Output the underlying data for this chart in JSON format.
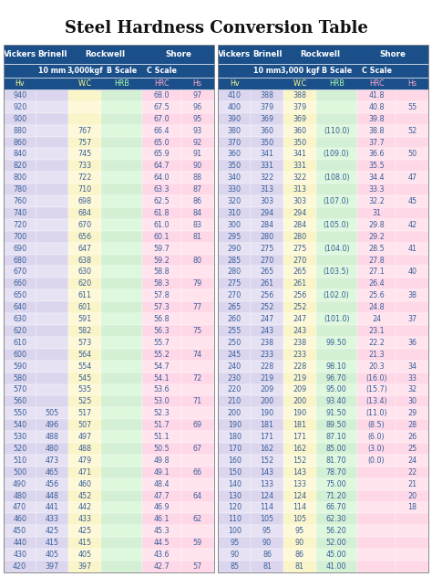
{
  "title": "Steel Hardness Conversion Table",
  "left_data": [
    [
      "940",
      "",
      "",
      "",
      "68.0",
      "97"
    ],
    [
      "920",
      "",
      "",
      "",
      "67.5",
      "96"
    ],
    [
      "900",
      "",
      "",
      "",
      "67.0",
      "95"
    ],
    [
      "880",
      "",
      "767",
      "",
      "66.4",
      "93"
    ],
    [
      "860",
      "",
      "757",
      "",
      "65.0",
      "92"
    ],
    [
      "840",
      "",
      "745",
      "",
      "65.9",
      "91"
    ],
    [
      "820",
      "",
      "733",
      "",
      "64.7",
      "90"
    ],
    [
      "800",
      "",
      "722",
      "",
      "64.0",
      "88"
    ],
    [
      "780",
      "",
      "710",
      "",
      "63.3",
      "87"
    ],
    [
      "760",
      "",
      "698",
      "",
      "62.5",
      "86"
    ],
    [
      "740",
      "",
      "684",
      "",
      "61.8",
      "84"
    ],
    [
      "720",
      "",
      "670",
      "",
      "61.0",
      "83"
    ],
    [
      "700",
      "",
      "656",
      "",
      "60.1",
      "81"
    ],
    [
      "690",
      "",
      "647",
      "",
      "59.7",
      ""
    ],
    [
      "680",
      "",
      "638",
      "",
      "59.2",
      "80"
    ],
    [
      "670",
      "",
      "630",
      "",
      "58.8",
      ""
    ],
    [
      "660",
      "",
      "620",
      "",
      "58.3",
      "79"
    ],
    [
      "650",
      "",
      "611",
      "",
      "57.8",
      ""
    ],
    [
      "640",
      "",
      "601",
      "",
      "57.3",
      "77"
    ],
    [
      "630",
      "",
      "591",
      "",
      "56.8",
      ""
    ],
    [
      "620",
      "",
      "582",
      "",
      "56.3",
      "75"
    ],
    [
      "610",
      "",
      "573",
      "",
      "55.7",
      ""
    ],
    [
      "600",
      "",
      "564",
      "",
      "55.2",
      "74"
    ],
    [
      "590",
      "",
      "554",
      "",
      "54.7",
      ""
    ],
    [
      "580",
      "",
      "545",
      "",
      "54.1",
      "72"
    ],
    [
      "570",
      "",
      "535",
      "",
      "53.6",
      ""
    ],
    [
      "560",
      "",
      "525",
      "",
      "53.0",
      "71"
    ],
    [
      "550",
      "505",
      "517",
      "",
      "52.3",
      ""
    ],
    [
      "540",
      "496",
      "507",
      "",
      "51.7",
      "69"
    ],
    [
      "530",
      "488",
      "497",
      "",
      "51.1",
      ""
    ],
    [
      "520",
      "480",
      "488",
      "",
      "50.5",
      "67"
    ],
    [
      "510",
      "473",
      "479",
      "",
      "49.8",
      ""
    ],
    [
      "500",
      "465",
      "471",
      "",
      "49.1",
      "66"
    ],
    [
      "490",
      "456",
      "460",
      "",
      "48.4",
      ""
    ],
    [
      "480",
      "448",
      "452",
      "",
      "47.7",
      "64"
    ],
    [
      "470",
      "441",
      "442",
      "",
      "46.9",
      ""
    ],
    [
      "460",
      "433",
      "433",
      "",
      "46.1",
      "62"
    ],
    [
      "450",
      "425",
      "425",
      "",
      "45.3",
      ""
    ],
    [
      "440",
      "415",
      "415",
      "",
      "44.5",
      "59"
    ],
    [
      "430",
      "405",
      "405",
      "",
      "43.6",
      ""
    ],
    [
      "420",
      "397",
      "397",
      "",
      "42.7",
      "57"
    ]
  ],
  "right_data": [
    [
      "410",
      "388",
      "388",
      "",
      "41.8",
      ""
    ],
    [
      "400",
      "379",
      "379",
      "",
      "40.8",
      "55"
    ],
    [
      "390",
      "369",
      "369",
      "",
      "39.8",
      ""
    ],
    [
      "380",
      "360",
      "360",
      "(110.0)",
      "38.8",
      "52"
    ],
    [
      "370",
      "350",
      "350",
      "",
      "37.7",
      ""
    ],
    [
      "360",
      "341",
      "341",
      "(109.0)",
      "36.6",
      "50"
    ],
    [
      "350",
      "331",
      "331",
      "",
      "35.5",
      ""
    ],
    [
      "340",
      "322",
      "322",
      "(108.0)",
      "34.4",
      "47"
    ],
    [
      "330",
      "313",
      "313",
      "",
      "33.3",
      ""
    ],
    [
      "320",
      "303",
      "303",
      "(107.0)",
      "32.2",
      "45"
    ],
    [
      "310",
      "294",
      "294",
      "",
      "31",
      ""
    ],
    [
      "300",
      "284",
      "284",
      "(105.0)",
      "29.8",
      "42"
    ],
    [
      "295",
      "280",
      "280",
      "",
      "29.2",
      ""
    ],
    [
      "290",
      "275",
      "275",
      "(104.0)",
      "28.5",
      "41"
    ],
    [
      "285",
      "270",
      "270",
      "",
      "27.8",
      ""
    ],
    [
      "280",
      "265",
      "265",
      "(103.5)",
      "27.1",
      "40"
    ],
    [
      "275",
      "261",
      "261",
      "",
      "26.4",
      ""
    ],
    [
      "270",
      "256",
      "256",
      "(102.0)",
      "25.6",
      "38"
    ],
    [
      "265",
      "252",
      "252",
      "",
      "24.8",
      ""
    ],
    [
      "260",
      "247",
      "247",
      "(101.0)",
      "24",
      "37"
    ],
    [
      "255",
      "243",
      "243",
      "",
      "23.1",
      ""
    ],
    [
      "250",
      "238",
      "238",
      "99.50",
      "22.2",
      "36"
    ],
    [
      "245",
      "233",
      "233",
      "",
      "21.3",
      ""
    ],
    [
      "240",
      "228",
      "228",
      "98.10",
      "20.3",
      "34"
    ],
    [
      "230",
      "219",
      "219",
      "96.70",
      "(16.0)",
      "33"
    ],
    [
      "220",
      "209",
      "209",
      "95.00",
      "(15.7)",
      "32"
    ],
    [
      "210",
      "200",
      "200",
      "93.40",
      "(13.4)",
      "30"
    ],
    [
      "200",
      "190",
      "190",
      "91.50",
      "(11.0)",
      "29"
    ],
    [
      "190",
      "181",
      "181",
      "89.50",
      "(8.5)",
      "28"
    ],
    [
      "180",
      "171",
      "171",
      "87.10",
      "(6.0)",
      "26"
    ],
    [
      "170",
      "162",
      "162",
      "85.00",
      "(3.0)",
      "25"
    ],
    [
      "160",
      "152",
      "152",
      "81.70",
      "(0.0)",
      "24"
    ],
    [
      "150",
      "143",
      "143",
      "78.70",
      "",
      "22"
    ],
    [
      "140",
      "133",
      "133",
      "75.00",
      "",
      "21"
    ],
    [
      "130",
      "124",
      "124",
      "71.20",
      "",
      "20"
    ],
    [
      "120",
      "114",
      "114",
      "66.70",
      "",
      "18"
    ],
    [
      "110",
      "105",
      "105",
      "62.30",
      "",
      ""
    ],
    [
      "100",
      "95",
      "95",
      "56.20",
      "",
      ""
    ],
    [
      "95",
      "90",
      "90",
      "52.00",
      "",
      ""
    ],
    [
      "90",
      "86",
      "86",
      "45.00",
      "",
      ""
    ],
    [
      "85",
      "81",
      "81",
      "41.00",
      "",
      ""
    ]
  ],
  "header_bg": "#1a4f8a",
  "header_fg": "#ffffff",
  "title_fontsize": 13,
  "cell_fontsize": 5.8,
  "col_colors_even": [
    "#dbd6ee",
    "#dbd6ee",
    "#faf5c8",
    "#d4f0d4",
    "#ffd8e8",
    "#ffd8e8"
  ],
  "col_colors_odd": [
    "#e6e2f4",
    "#e6e2f4",
    "#fdf9d8",
    "#ddf8dd",
    "#ffe4ee",
    "#ffe4ee"
  ]
}
